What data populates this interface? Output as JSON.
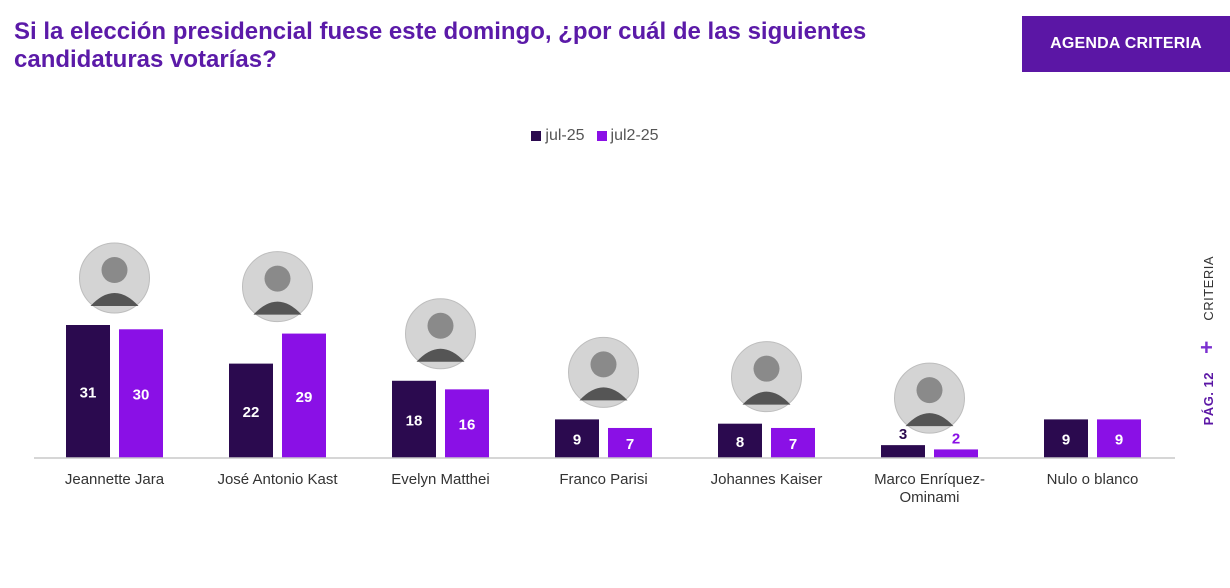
{
  "header": {
    "title": "Si la elección presidencial fuese este domingo, ¿por cuál de las siguientes candidaturas votarías?",
    "brand": "AGENDA CRITERIA"
  },
  "side": {
    "label_top": "CRITERIA",
    "plus": "+",
    "label_bottom": "PÁG. 12"
  },
  "colors": {
    "series_1": "#2b0a4f",
    "series_2": "#8a10e6",
    "title": "#5b1aa8",
    "brand_bg": "#5b16a5"
  },
  "chart_data": {
    "type": "bar",
    "categories": [
      "Jeannette Jara",
      "José Antonio Kast",
      "Evelyn Matthei",
      "Franco Parisi",
      "Johannes Kaiser",
      "Marco Enríquez-Ominami",
      "Nulo o blanco"
    ],
    "series": [
      {
        "name": "jul-25",
        "values": [
          31,
          22,
          18,
          9,
          8,
          3,
          9
        ]
      },
      {
        "name": "jul2-25",
        "values": [
          30,
          29,
          16,
          7,
          7,
          2,
          9
        ]
      }
    ],
    "data_labels": true,
    "legend": "top-center",
    "ylim": [
      0,
      31
    ],
    "grid": false,
    "photos": [
      "person-photo",
      "person-photo",
      "person-photo",
      "person-photo",
      "person-photo",
      "person-photo",
      "none"
    ]
  }
}
